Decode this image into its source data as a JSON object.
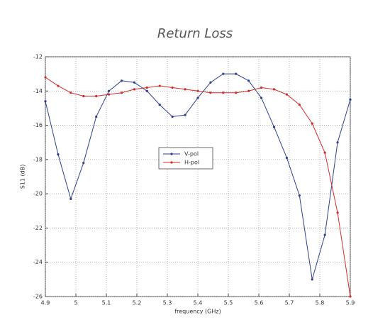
{
  "chart_data": {
    "type": "line",
    "title": "Return Loss",
    "x_label": "frequency (GHz)",
    "y_label": "S11 (dB)",
    "x": [
      4.9,
      4.9417,
      4.9833,
      5.025,
      5.0667,
      5.1083,
      5.15,
      5.1917,
      5.2333,
      5.275,
      5.3167,
      5.3583,
      5.4,
      5.4417,
      5.4833,
      5.525,
      5.5667,
      5.6083,
      5.65,
      5.6917,
      5.7333,
      5.775,
      5.8167,
      5.8583,
      5.9
    ],
    "series": [
      {
        "name": "V-pol",
        "color": "#2b3f8f",
        "values": [
          -14.6,
          -17.7,
          -20.3,
          -18.2,
          -15.5,
          -14.0,
          -13.4,
          -13.5,
          -14.0,
          -14.8,
          -15.5,
          -15.4,
          -14.4,
          -13.5,
          -13.0,
          -13.0,
          -13.4,
          -14.4,
          -16.1,
          -17.9,
          -20.1,
          -25.0,
          -22.4,
          -17.0,
          -14.5
        ]
      },
      {
        "name": "H-pol",
        "color": "#d42a2a",
        "values": [
          -13.2,
          -13.7,
          -14.1,
          -14.3,
          -14.3,
          -14.2,
          -14.1,
          -13.9,
          -13.8,
          -13.7,
          -13.8,
          -13.9,
          -14.0,
          -14.1,
          -14.1,
          -14.1,
          -14.0,
          -13.8,
          -13.9,
          -14.2,
          -14.8,
          -15.9,
          -17.6,
          -21.1,
          -26.0
        ]
      }
    ],
    "xlim": [
      4.9,
      5.9
    ],
    "xticks": [
      4.9,
      5,
      5.1,
      5.2,
      5.3,
      5.4,
      5.5,
      5.6,
      5.7,
      5.8,
      5.9
    ],
    "ylim": [
      -26,
      -12
    ],
    "yticks": [
      -26,
      -24,
      -22,
      -20,
      -18,
      -16,
      -14,
      -12
    ],
    "grid": true
  }
}
